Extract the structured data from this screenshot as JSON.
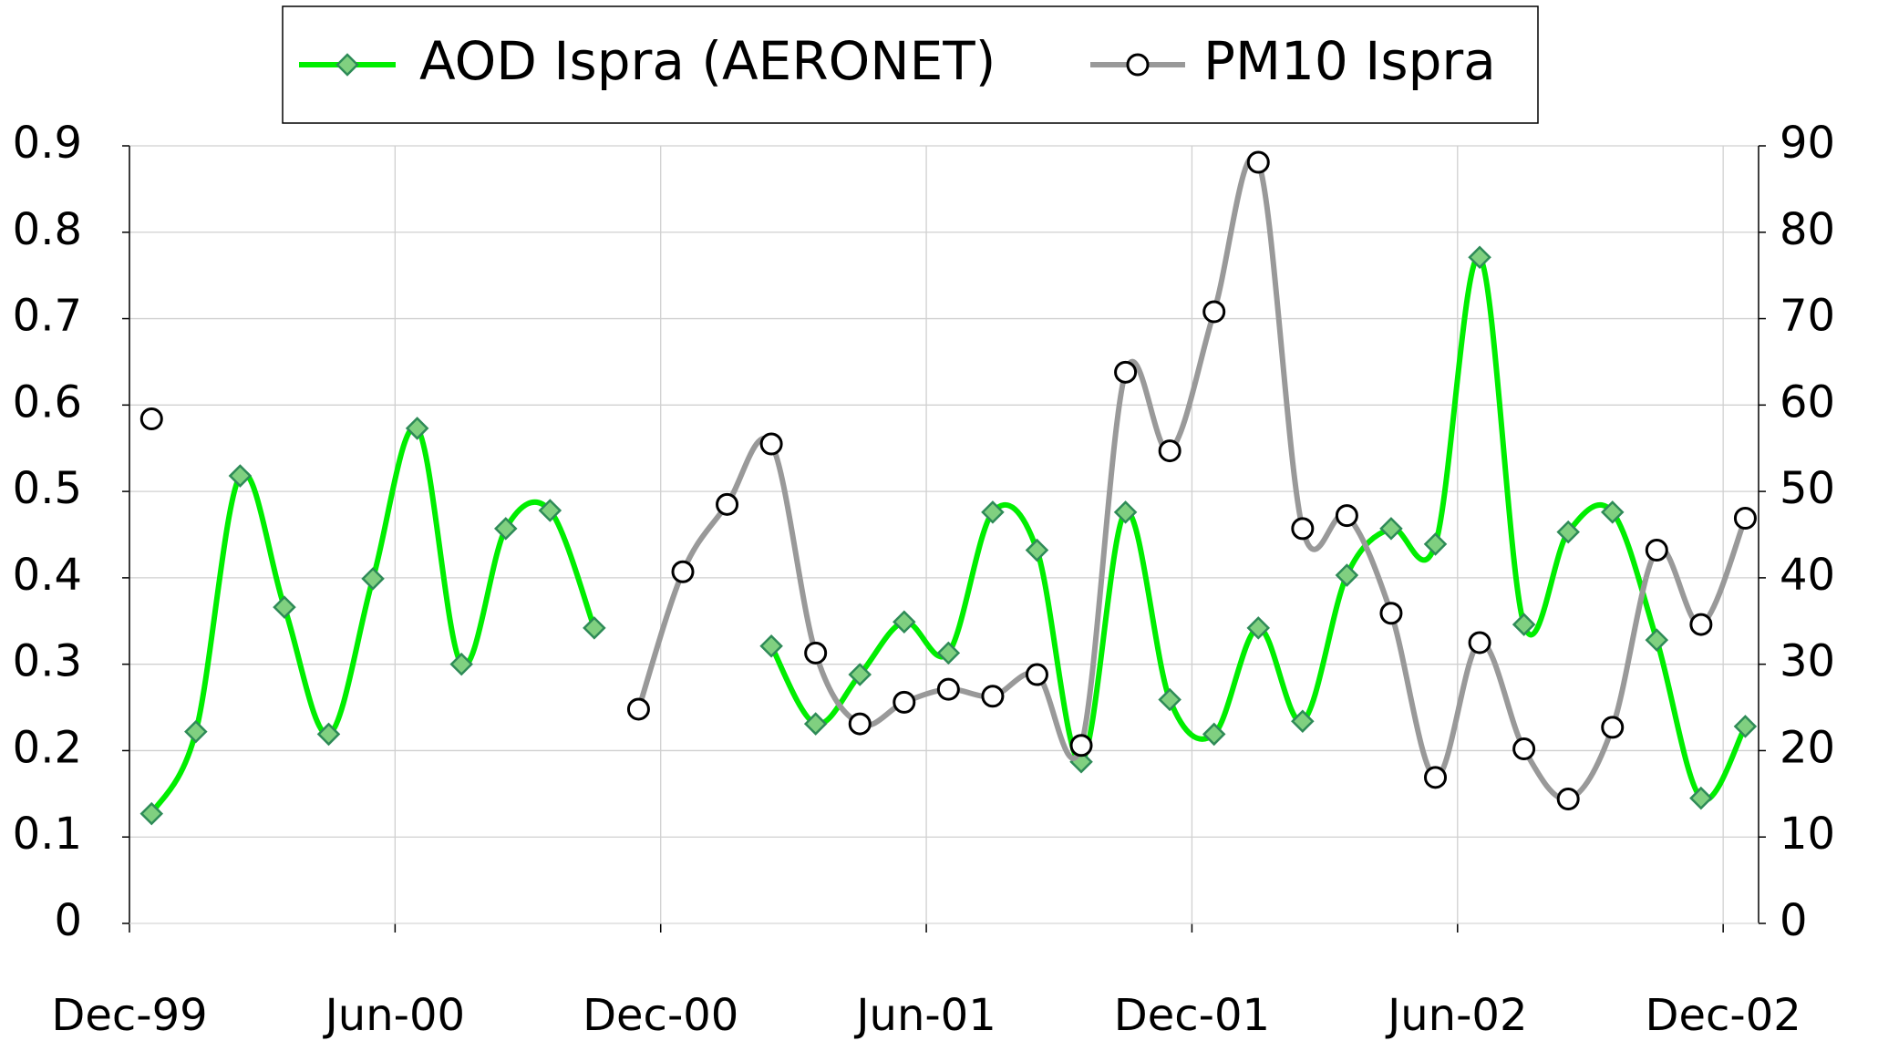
{
  "chart_data": {
    "type": "line",
    "legend": "top",
    "grid": true,
    "x": [
      "Dec-99",
      "Jan-00",
      "Feb-00",
      "Mar-00",
      "Apr-00",
      "May-00",
      "Jun-00",
      "Jul-00",
      "Aug-00",
      "Sep-00",
      "Oct-00",
      "Nov-00",
      "Dec-00",
      "Jan-01",
      "Feb-01",
      "Mar-01",
      "Apr-01",
      "May-01",
      "Jun-01",
      "Jul-01",
      "Aug-01",
      "Sep-01",
      "Oct-01",
      "Nov-01",
      "Dec-01",
      "Jan-02",
      "Feb-02",
      "Mar-02",
      "Apr-02",
      "May-02",
      "Jun-02",
      "Jul-02",
      "Aug-02",
      "Sep-02",
      "Oct-02",
      "Nov-02",
      "Dec-02"
    ],
    "xticks": [
      "Dec-99",
      "Jun-00",
      "Dec-00",
      "Jun-01",
      "Dec-01",
      "Jun-02",
      "Dec-02"
    ],
    "ylim": [
      0,
      0.9
    ],
    "yticks": [
      0,
      0.1,
      0.2,
      0.3,
      0.4,
      0.5,
      0.6,
      0.7,
      0.8,
      0.9
    ],
    "y2lim": [
      0,
      90
    ],
    "y2ticks": [
      0,
      10,
      20,
      30,
      40,
      50,
      60,
      70,
      80,
      90
    ],
    "series": [
      {
        "name": "AOD Ispra (AERONET)",
        "color": "#00ee00",
        "marker": "diamond",
        "values": [
          0.127,
          0.222,
          0.518,
          0.366,
          0.219,
          0.399,
          0.573,
          0.3,
          0.457,
          0.478,
          0.342,
          null,
          null,
          null,
          0.321,
          0.231,
          0.288,
          0.349,
          0.313,
          0.476,
          0.432,
          0.187,
          0.476,
          0.259,
          0.219,
          0.342,
          0.234,
          0.403,
          0.457,
          0.439,
          0.771,
          0.346,
          0.453,
          0.476,
          0.328,
          0.145,
          0.228
        ]
      },
      {
        "name": "PM10 Ispra",
        "color": "#999999",
        "marker": "circle",
        "axis": "y2",
        "values": [
          58.4,
          null,
          null,
          null,
          null,
          null,
          null,
          null,
          null,
          null,
          null,
          24.8,
          40.7,
          48.5,
          55.5,
          31.3,
          23.1,
          25.6,
          27.1,
          26.3,
          28.8,
          20.6,
          63.8,
          54.7,
          70.8,
          88.1,
          45.7,
          47.2,
          35.9,
          16.9,
          32.5,
          20.2,
          14.4,
          22.7,
          43.2,
          34.6,
          46.9
        ]
      }
    ]
  }
}
